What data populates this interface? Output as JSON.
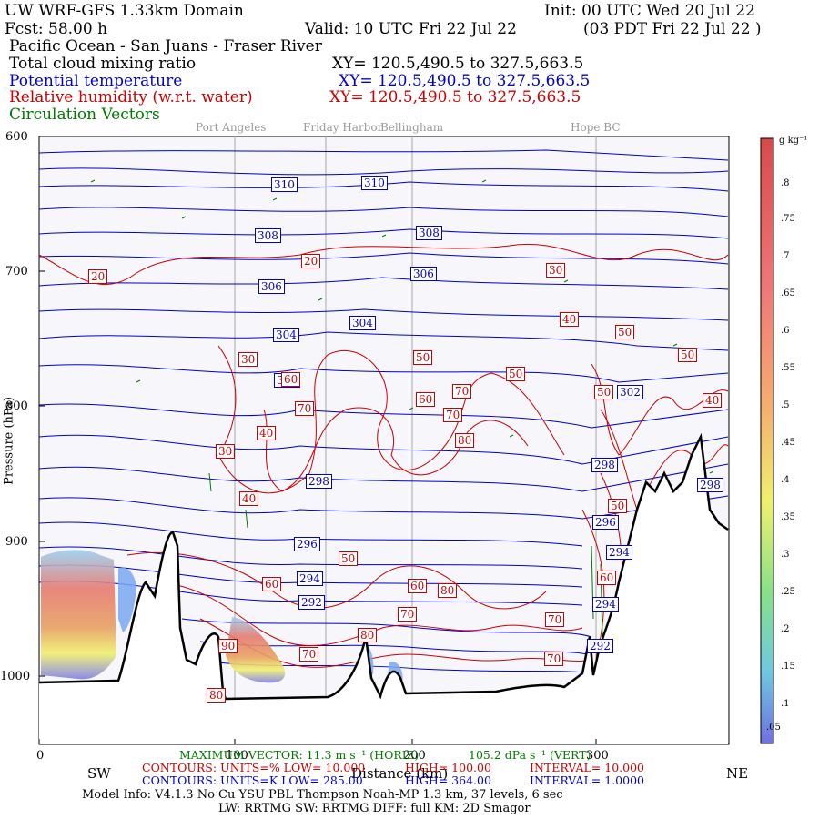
{
  "header": {
    "title": "UW WRF-GFS 1.33km Domain",
    "init": "Init: 00 UTC Wed 20 Jul 22",
    "fcst": "Fcst:   58.00 h",
    "valid": "Valid: 10 UTC Fri 22 Jul 22",
    "valid_local": "(03 PDT Fri 22 Jul 22  )",
    "region": "Pacific Ocean - San Juans - Fraser River",
    "fields": [
      {
        "name": "Total cloud mixing ratio",
        "xy": "XY= 120.5,490.5 to 327.5,663.5",
        "color": "#000000"
      },
      {
        "name": "Potential temperature",
        "xy": "XY= 120.5,490.5 to 327.5,663.5",
        "color": "#0000cc"
      },
      {
        "name": "Relative humidity (w.r.t. water)",
        "xy": "XY= 120.5,490.5 to 327.5,663.5",
        "color": "#cc0000"
      },
      {
        "name": "Circulation Vectors",
        "xy": "",
        "color": "#007a00"
      }
    ]
  },
  "places": [
    "Port Angeles",
    "Friday Harbor",
    "Bellingham",
    "Hope BC"
  ],
  "yaxis": {
    "label": "Pressure (hPa)",
    "ticks": [
      "600",
      "700",
      "800",
      "900",
      "1000"
    ]
  },
  "xaxis": {
    "label": "Distance (km)",
    "ticks": [
      "0",
      "100",
      "200",
      "300"
    ],
    "left_end": "SW",
    "right_end": "NE"
  },
  "colorbar": {
    "units": "g kg⁻¹",
    "labels": [
      ".8",
      ".75",
      ".7",
      ".65",
      ".6",
      ".55",
      ".5",
      ".45",
      ".4",
      ".35",
      ".3",
      ".25",
      ".2",
      ".15",
      ".1",
      ".05"
    ]
  },
  "contour_labels": {
    "theta": [
      "310",
      "310",
      "308",
      "308",
      "306",
      "306",
      "304",
      "304",
      "302",
      "302",
      "298",
      "298",
      "298",
      "296",
      "296",
      "294",
      "294",
      "292",
      "294",
      "292"
    ],
    "rh": [
      "20",
      "20",
      "30",
      "30",
      "30",
      "40",
      "40",
      "40",
      "50",
      "50",
      "50",
      "50",
      "50",
      "50",
      "60",
      "60",
      "60",
      "70",
      "70",
      "70",
      "70",
      "70",
      "70",
      "70",
      "80",
      "80",
      "80",
      "90",
      "80",
      "50",
      "60",
      "40",
      "60"
    ]
  },
  "footer": {
    "max_vector": "MAXIMUM VECTOR:  11.3 m s⁻¹ (HORIZ)",
    "max_vector_vert": "105.2 dPa s⁻¹ (VERT)",
    "rh_contours": "CONTOURS:  UNITS=%  LOW=   10.000",
    "rh_high": "HIGH=   100.00",
    "rh_interval": "INTERVAL=     10.000",
    "t_contours": "CONTOURS:  UNITS=K  LOW=   285.00",
    "t_high": "HIGH=   364.00",
    "t_interval": "INTERVAL=     1.0000",
    "model_info": "Model Info: V4.1.3    No Cu    YSU PBL  Thompson     Noah-MP    1.3 km,   37 levels,     6 sec",
    "model_info2": "LW: RRTMG SW: RRTMG    DIFF: full    KM: 2D Smagor"
  },
  "colors": {
    "rh": "#cc0000",
    "theta": "#0000cc",
    "vectors": "#007a00",
    "terrain": "#000000"
  }
}
